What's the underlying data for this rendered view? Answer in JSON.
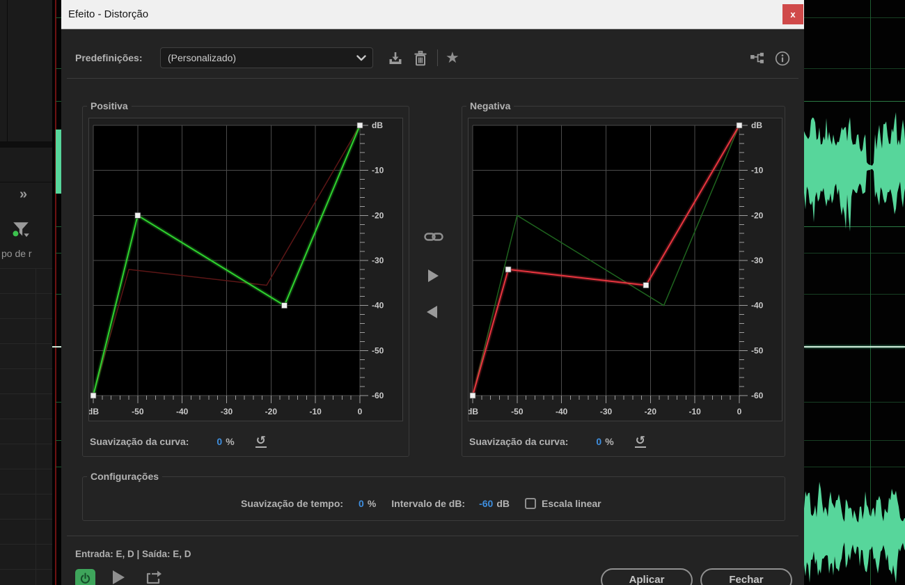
{
  "window": {
    "title": "Efeito - Distorção",
    "close_glyph": "x"
  },
  "toolbar": {
    "presets_label": "Predefinições:",
    "preset_value": "(Personalizado)"
  },
  "sidebar": {
    "expand_glyph": "»",
    "partial_label": "po de r"
  },
  "chart_data": [
    {
      "type": "line",
      "title": "Positiva",
      "xlabel": "dB",
      "ylabel": "dB",
      "xlim": [
        -60,
        0
      ],
      "ylim": [
        -60,
        0
      ],
      "grid": true,
      "x_tick_values": [
        -60,
        -50,
        -40,
        -30,
        -20,
        -10,
        0
      ],
      "x_tick_labels": [
        "dB",
        "-50",
        "-40",
        "-30",
        "-20",
        "-10",
        "0"
      ],
      "y_tick_values": [
        0,
        -10,
        -20,
        -30,
        -40,
        -50,
        -60
      ],
      "y_tick_labels": [
        "dB",
        "-10",
        "-20",
        "-30",
        "-40",
        "-50",
        "-60"
      ],
      "series": [
        {
          "name": "referencia-negativa",
          "color": "#5d1616",
          "width": 1.5,
          "markers": false,
          "points": [
            [
              -60,
              -60
            ],
            [
              -52,
              -32
            ],
            [
              -21,
              -35.5
            ],
            [
              0,
              0
            ]
          ]
        },
        {
          "name": "curva-positiva",
          "color": "#2fd32f",
          "width": 2,
          "markers": true,
          "points": [
            [
              -60,
              -60
            ],
            [
              -50,
              -20
            ],
            [
              -17,
              -40
            ],
            [
              0,
              0
            ]
          ]
        }
      ],
      "smoothing_label": "Suavização da curva:",
      "smoothing_value": "0",
      "smoothing_unit": "%"
    },
    {
      "type": "line",
      "title": "Negativa",
      "xlabel": "dB",
      "ylabel": "dB",
      "xlim": [
        -60,
        0
      ],
      "ylim": [
        -60,
        0
      ],
      "grid": true,
      "x_tick_values": [
        -60,
        -50,
        -40,
        -30,
        -20,
        -10,
        0
      ],
      "x_tick_labels": [
        "dB",
        "-50",
        "-40",
        "-30",
        "-20",
        "-10",
        "0"
      ],
      "y_tick_values": [
        0,
        -10,
        -20,
        -30,
        -40,
        -50,
        -60
      ],
      "y_tick_labels": [
        "dB",
        "-10",
        "-20",
        "-30",
        "-40",
        "-50",
        "-60"
      ],
      "series": [
        {
          "name": "referencia-positiva",
          "color": "#1e641e",
          "width": 1.5,
          "markers": false,
          "points": [
            [
              -60,
              -60
            ],
            [
              -50,
              -20
            ],
            [
              -17,
              -40
            ],
            [
              0,
              0
            ]
          ]
        },
        {
          "name": "curva-negativa",
          "color": "#e8353f",
          "width": 2,
          "markers": true,
          "points": [
            [
              -60,
              -60
            ],
            [
              -52,
              -32
            ],
            [
              -21,
              -35.5
            ],
            [
              0,
              0
            ]
          ]
        }
      ],
      "smoothing_label": "Suavização da curva:",
      "smoothing_value": "0",
      "smoothing_unit": "%"
    }
  ],
  "settings": {
    "title": "Configurações",
    "time_smoothing_label": "Suavização de tempo:",
    "time_smoothing_value": "0",
    "time_smoothing_unit": "%",
    "db_range_label": "Intervalo de dB:",
    "db_range_value": "-60",
    "db_range_unit": "dB",
    "linear_scale_label": "Escala linear",
    "linear_scale_checked": false
  },
  "footer": {
    "io_text": "Entrada: E, D | Saída: E, D"
  },
  "buttons": {
    "apply": "Aplicar",
    "close": "Fechar"
  },
  "colors": {
    "accent_blue": "#3e8ede",
    "curve_green": "#2fd32f",
    "curve_red": "#e8353f",
    "waveform_green": "#57d69b",
    "grid_gray": "#4b4b4b",
    "close_button_red": "#d04a4a",
    "titlebar_bg": "#f0f0f0"
  }
}
